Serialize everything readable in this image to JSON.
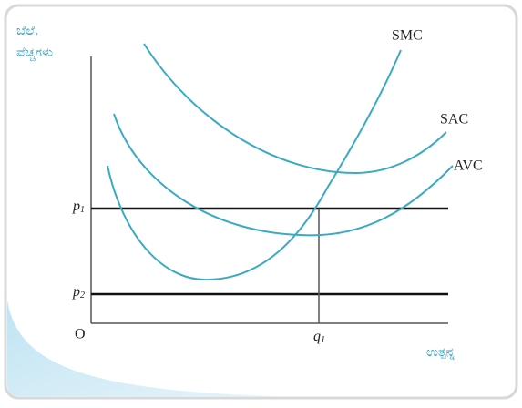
{
  "y_axis_label": [
    "ಬೆಲೆ,",
    "ವೆಚ್ಚಗಳು"
  ],
  "x_axis_label": "ಉತ್ಪನ್ನ",
  "origin": "O",
  "curves": [
    "SMC",
    "SAC",
    "AVC"
  ],
  "price_lines": [
    {
      "text": "p",
      "sub": "1"
    },
    {
      "text": "p",
      "sub": "2"
    }
  ],
  "quantity": {
    "text": "q",
    "sub": "1"
  }
}
